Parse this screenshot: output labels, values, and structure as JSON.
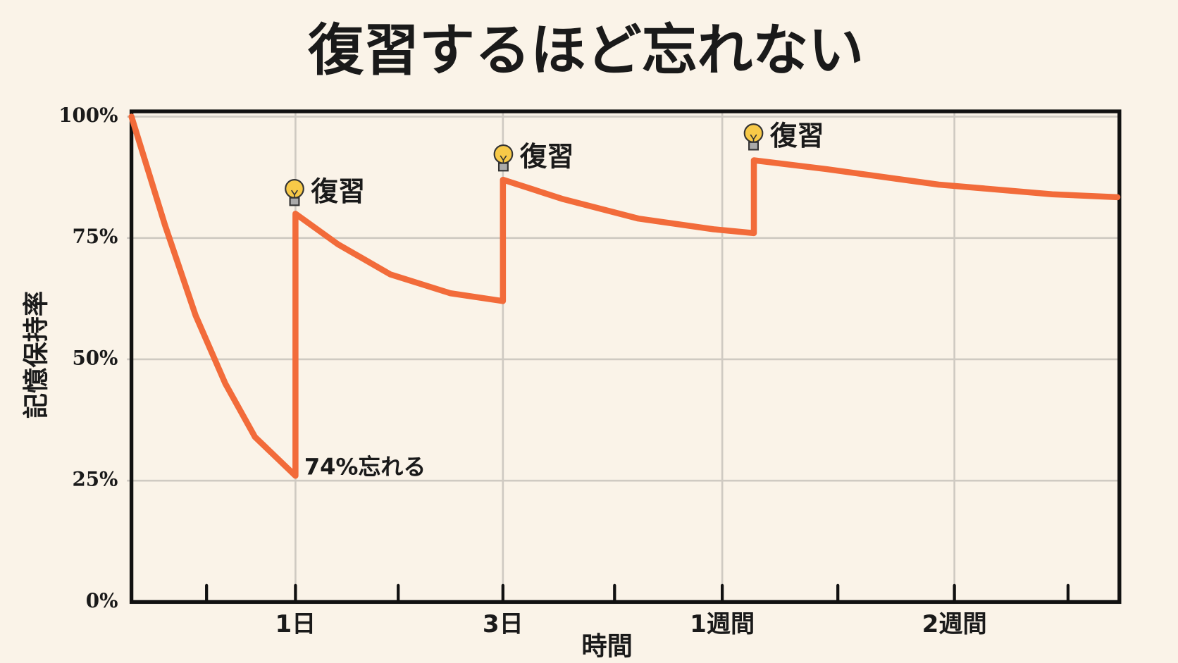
{
  "chart_data": {
    "type": "line",
    "title": "復習するほど忘れない",
    "ylabel": "記憶保持率",
    "xlabel": "時間",
    "x": [
      0,
      3.4,
      6.5,
      9.5,
      12.5,
      16.6,
      16.6,
      20.9,
      26.2,
      32.3,
      37.6,
      37.6,
      43.7,
      51.3,
      58.9,
      63.0,
      63.0,
      70.3,
      81.7,
      93.2,
      99.8
    ],
    "series": [
      {
        "color": "#f26b3a",
        "values": [
          100,
          77.6,
          59,
          45,
          34,
          26,
          80,
          73.7,
          67.5,
          63.6,
          62,
          87,
          83,
          79,
          76.8,
          76,
          91,
          89.2,
          86,
          84,
          83.4
        ]
      }
    ],
    "xlim": [
      0,
      100
    ],
    "xticks": [
      {
        "value": 7.6,
        "label": null
      },
      {
        "value": 16.6,
        "label": "1日"
      },
      {
        "value": 27.0,
        "label": null
      },
      {
        "value": 37.6,
        "label": "3日"
      },
      {
        "value": 48.9,
        "label": null
      },
      {
        "value": 59.8,
        "label": "1週間"
      },
      {
        "value": 71.5,
        "label": null
      },
      {
        "value": 83.3,
        "label": "2週間"
      },
      {
        "value": 94.8,
        "label": null
      }
    ],
    "ylim": [
      0,
      100
    ],
    "yticks": [
      {
        "value": 0,
        "label": "0%"
      },
      {
        "value": 25,
        "label": "25%"
      },
      {
        "value": 50,
        "label": "50%"
      },
      {
        "value": 75,
        "label": "75%"
      },
      {
        "value": 100,
        "label": "100%"
      }
    ],
    "grid": true,
    "annotations": [
      "復習",
      "復習",
      "復習",
      "74%忘れる"
    ]
  }
}
